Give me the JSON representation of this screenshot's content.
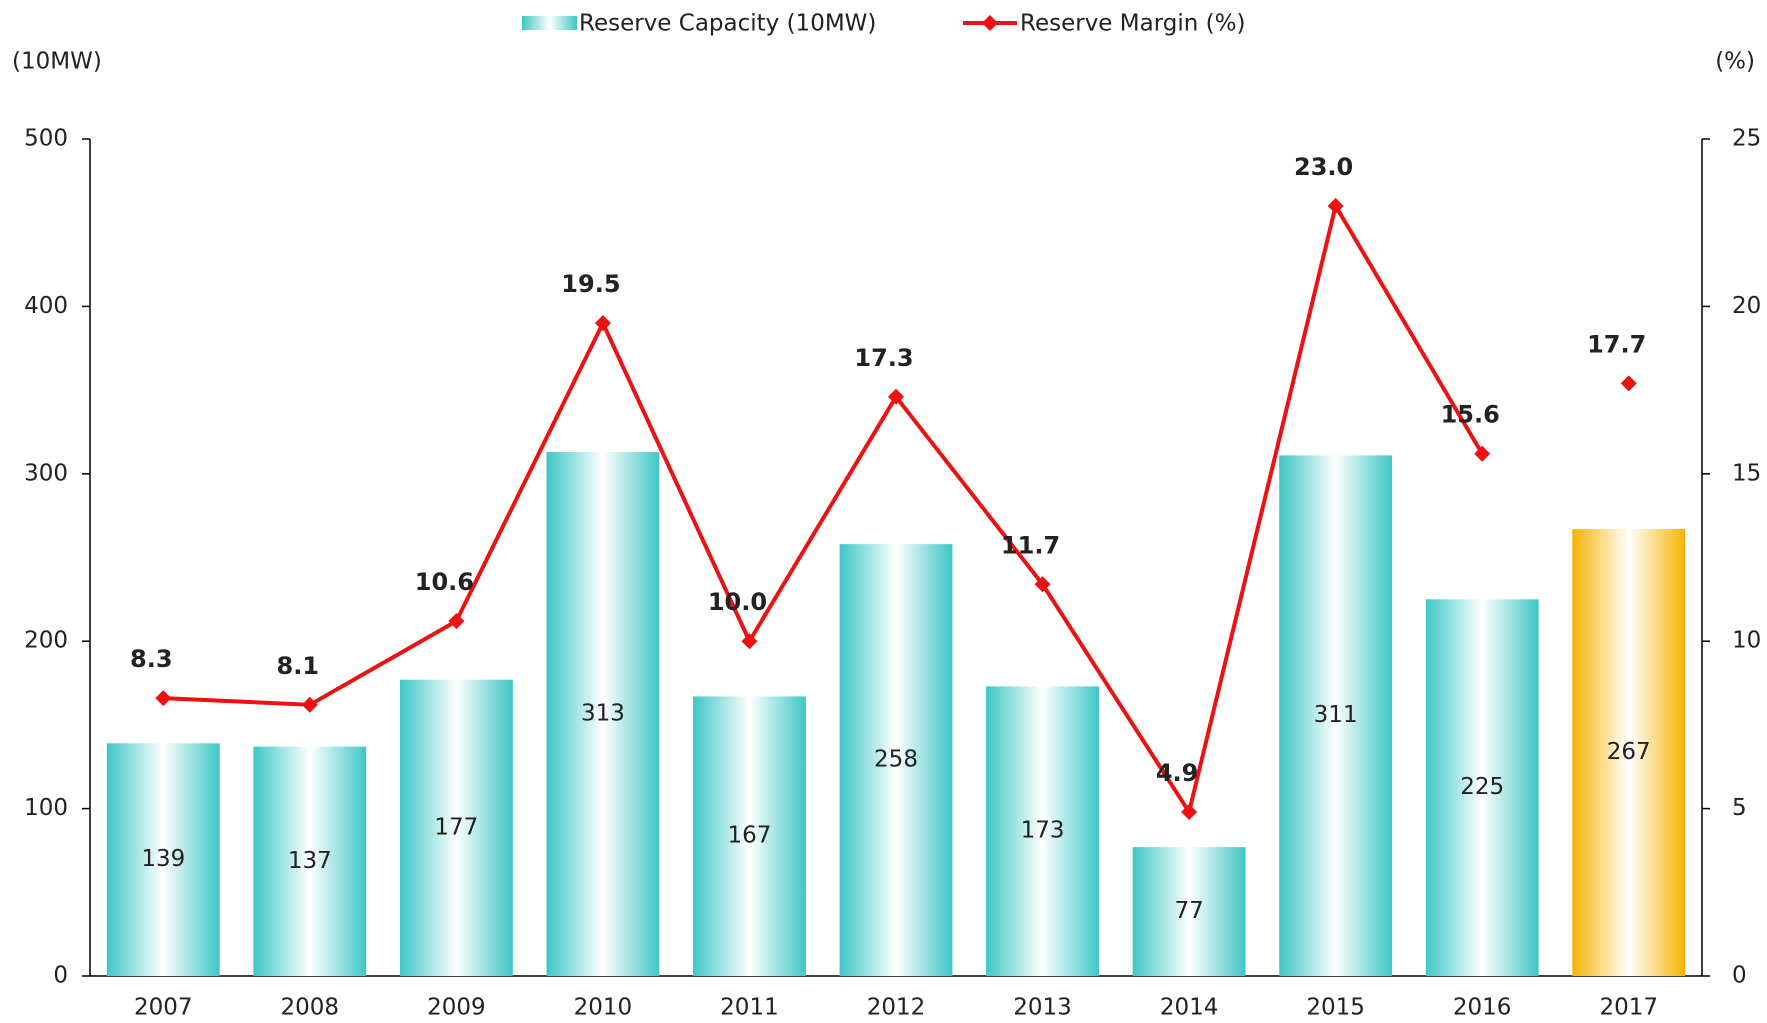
{
  "chart_data": {
    "type": "bar",
    "ylabel": "(10MW)",
    "y2label": "(%)",
    "categories": [
      "2007",
      "2008",
      "2009",
      "2010",
      "2011",
      "2012",
      "2013",
      "2014",
      "2015",
      "2016",
      "2017"
    ],
    "series": [
      {
        "name": "Reserve Capacity (10MW)",
        "type": "bar",
        "colors": [
          "#3ec6c6",
          "#3ec6c6",
          "#3ec6c6",
          "#3ec6c6",
          "#3ec6c6",
          "#3ec6c6",
          "#3ec6c6",
          "#3ec6c6",
          "#3ec6c6",
          "#3ec6c6",
          "#f5b300"
        ],
        "values": [
          139,
          137,
          177,
          313,
          167,
          258,
          173,
          77,
          311,
          225,
          267
        ]
      },
      {
        "name": "Reserve Margin (%)",
        "type": "line",
        "axis": "y2",
        "color": "#ee1111",
        "values": [
          8.3,
          8.1,
          10.6,
          19.5,
          10.0,
          17.3,
          11.7,
          4.9,
          23.0,
          15.6,
          17.7
        ],
        "value_labels": [
          "8.3",
          "8.1",
          "10.6",
          "19.5",
          "10.0",
          "17.3",
          "11.7",
          "4.9",
          "23.0",
          "15.6",
          "17.7"
        ],
        "label_colors": [
          "#1f1fb0",
          "#1f1fb0",
          "#1f1fb0",
          "#1f1fb0",
          "#1f1fb0",
          "#1f1fb0",
          "#1f1fb0",
          "#1f1fb0",
          "#1f1fb0",
          "#1f1fb0",
          "#f0b400"
        ]
      }
    ],
    "ylim": [
      0,
      500
    ],
    "yticks": [
      0,
      100,
      200,
      300,
      400,
      500
    ],
    "y2lim": [
      0,
      25
    ],
    "y2ticks": [
      0,
      5,
      10,
      15,
      20,
      25
    ],
    "grid": false
  }
}
